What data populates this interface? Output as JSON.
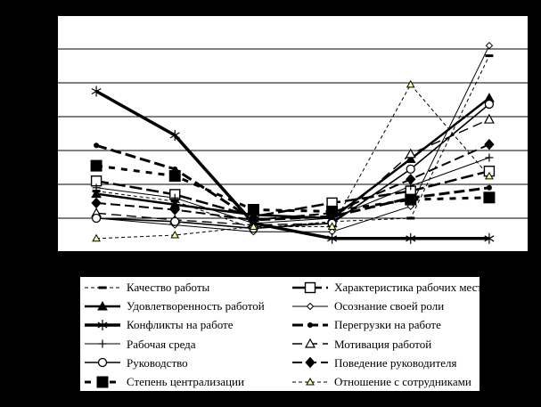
{
  "page": {
    "background_color": "#000000",
    "plot_background_color": "#ffffff",
    "axis_labels_visible": false,
    "title": ""
  },
  "chart_data": {
    "type": "line",
    "title": "",
    "xlabel": "",
    "ylabel": "",
    "categories": [
      "",
      "",
      "",
      "",
      "",
      ""
    ],
    "ylim": [
      0,
      7
    ],
    "gridlines": true,
    "gridline_interval": 1,
    "legend_position": "bottom",
    "legend_columns": 2,
    "line_color": "#000000",
    "highlight_marker_color": "#ffff99",
    "series": [
      {
        "name": "Качество работы",
        "values": [
          1.8,
          1.5,
          0.7,
          0.9,
          1.0,
          5.8
        ],
        "marker": "dash",
        "marker_fill": "#000000",
        "line_width": 1,
        "dash": "4 3"
      },
      {
        "name": "Характеристика рабочих мест",
        "values": [
          2.1,
          1.7,
          1.05,
          1.45,
          1.8,
          2.39
        ],
        "marker": "open-square",
        "marker_fill": "#ffffff",
        "line_width": 2.5,
        "dash": "14 5"
      },
      {
        "name": "Удовлетворенность работой",
        "values": [
          1.72,
          1.4,
          1.1,
          1.0,
          2.75,
          4.55
        ],
        "marker": "filled-triangle",
        "marker_fill": "#000000",
        "line_width": 2.5,
        "dash": ""
      },
      {
        "name": "Осознание своей роли",
        "values": [
          1.0,
          0.8,
          0.6,
          0.6,
          1.35,
          6.1
        ],
        "marker": "small-open-diamond",
        "marker_fill": "#ffffff",
        "line_width": 1,
        "dash": ""
      },
      {
        "name": "Конфликты на работе",
        "values": [
          4.75,
          3.45,
          0.85,
          0.4,
          0.4,
          0.4
        ],
        "marker": "asterisk",
        "marker_fill": "#000000",
        "line_width": 3.5,
        "dash": ""
      },
      {
        "name": "Перегрузки на работе",
        "values": [
          3.15,
          2.45,
          0.95,
          1.05,
          1.6,
          1.9
        ],
        "marker": "filled-circle",
        "marker_fill": "#000000",
        "line_width": 3,
        "dash": "12 5"
      },
      {
        "name": "Рабочая среда",
        "values": [
          1.9,
          1.6,
          0.85,
          1.0,
          1.95,
          2.79
        ],
        "marker": "plus",
        "marker_fill": "#000000",
        "line_width": 1,
        "dash": ""
      },
      {
        "name": "Мотивация работой",
        "values": [
          1.15,
          0.95,
          0.8,
          0.85,
          2.9,
          3.92
        ],
        "marker": "open-triangle",
        "marker_fill": "#ffffff",
        "line_width": 1.4,
        "dash": "11 6"
      },
      {
        "name": "Руководство",
        "values": [
          1.0,
          0.9,
          0.7,
          0.85,
          2.45,
          4.37
        ],
        "marker": "open-circle",
        "marker_fill": "#ffffff",
        "line_width": 1.6,
        "dash": ""
      },
      {
        "name": "Поведение руководителя",
        "values": [
          1.45,
          1.25,
          0.95,
          1.15,
          2.15,
          3.18
        ],
        "marker": "filled-diamond",
        "marker_fill": "#000000",
        "line_width": 2,
        "dash": "11 5"
      },
      {
        "name": "Степень централизации",
        "values": [
          2.55,
          2.25,
          1.25,
          1.2,
          1.55,
          1.61
        ],
        "marker": "big-filled-square",
        "marker_fill": "#000000",
        "line_width": 3,
        "dash": "7 7"
      },
      {
        "name": "Отношение с сотрудниками",
        "values": [
          0.4,
          0.5,
          0.75,
          0.75,
          4.95,
          2.24
        ],
        "marker": "small-yellow-triangle",
        "marker_fill": "#ffff99",
        "line_width": 1,
        "dash": "4 3"
      }
    ]
  }
}
